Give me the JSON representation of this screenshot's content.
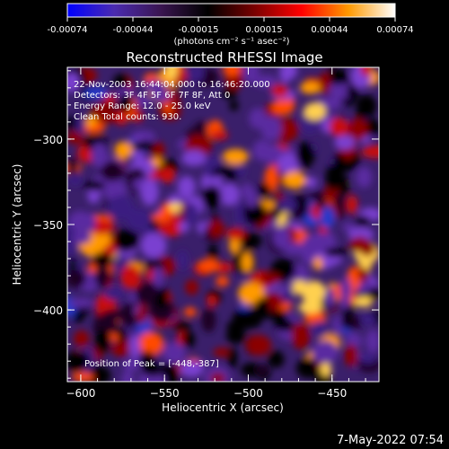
{
  "colorbar": {
    "tick_labels": [
      "-0.00074",
      "-0.00044",
      "-0.00015",
      "0.00015",
      "0.00044",
      "0.00074"
    ],
    "units_label": "(photons cm⁻² s⁻¹ asec⁻²)",
    "stops": [
      "#0000ff",
      "#4b2bb0",
      "#3a1550",
      "#000000",
      "#7a0000",
      "#ff0000",
      "#ff9900",
      "#ffffff"
    ]
  },
  "image": {
    "title": "Reconstructed RHESSI Image",
    "xlabel": "Heliocentric X (arcsec)",
    "ylabel": "Heliocentric Y (arcsec)",
    "xlim": [
      -608,
      -422
    ],
    "ylim": [
      -442,
      -258
    ],
    "x_ticks": [
      -600,
      -550,
      -500,
      -450
    ],
    "y_ticks": [
      -300,
      -350,
      -400
    ],
    "info_lines": [
      "22-Nov-2003 16:44:04.000 to 16:46:20.000",
      "Detectors: 3F 4F 5F 6F 7F 8F, Att 0",
      "Energy Range: 12.0 - 25.0 keV",
      "Clean     Total counts: 930."
    ],
    "peak_label": "Position of Peak = [-448,-387]",
    "grid": false
  },
  "footer": {
    "timestamp": "7-May-2022 07:54"
  }
}
